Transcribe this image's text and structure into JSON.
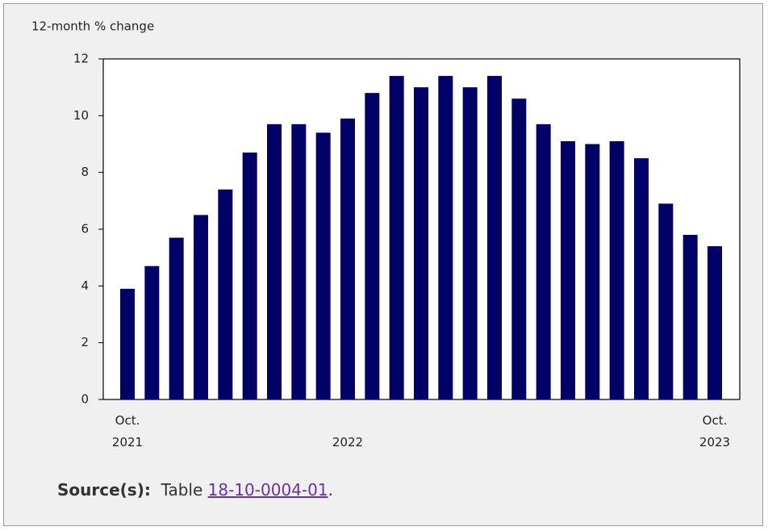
{
  "chart_data": {
    "type": "bar",
    "y_label": "12-month % change",
    "categories": [
      "Oct. 2021",
      null,
      null,
      null,
      null,
      null,
      null,
      null,
      null,
      "2022",
      null,
      null,
      null,
      null,
      null,
      null,
      null,
      null,
      null,
      null,
      null,
      null,
      null,
      null,
      "Oct. 2023"
    ],
    "values": [
      3.9,
      4.7,
      5.7,
      6.5,
      7.4,
      8.7,
      9.7,
      9.7,
      9.4,
      9.9,
      10.8,
      11.4,
      11.0,
      11.4,
      11.0,
      11.4,
      10.6,
      9.7,
      9.1,
      9.0,
      9.1,
      8.5,
      6.9,
      5.8,
      5.4
    ],
    "color": "#000066",
    "ylim": [
      0,
      12
    ],
    "yticks": [
      0,
      2,
      4,
      6,
      8,
      10,
      12
    ]
  },
  "source": {
    "label": "Source(s):",
    "text": "Table",
    "link": "18-10-0004-01",
    "end": "."
  }
}
